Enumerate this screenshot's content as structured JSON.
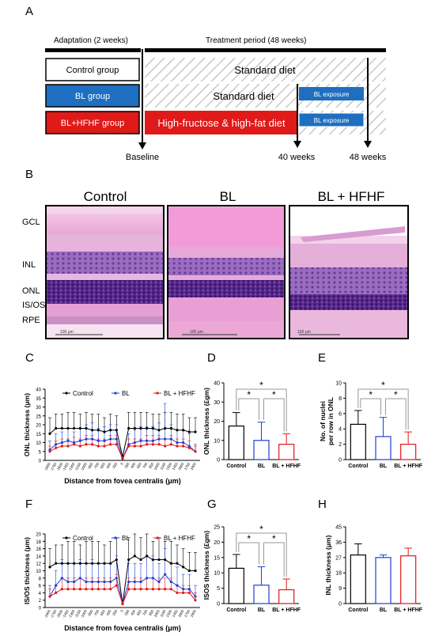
{
  "panel_labels": {
    "a": "A",
    "b": "B",
    "c": "C",
    "d": "D",
    "e": "E",
    "f": "F",
    "g": "G",
    "h": "H"
  },
  "timeline": {
    "adaptation_label": "Adaptation (2 weeks)",
    "treatment_label": "Treatment period (48 weeks)",
    "rows": [
      {
        "group": "Control group",
        "color": "#ffffff",
        "text_color": "#000000",
        "diet": "Standard diet"
      },
      {
        "group": "BL group",
        "color": "#1f6fc0",
        "text_color": "#ffffff",
        "diet": "Standard diet",
        "exposure": "BL exposure"
      },
      {
        "group": "BL+HFHF group",
        "color": "#e01919",
        "text_color": "#ffffff",
        "diet": "High-fructose & high-fat diet",
        "exposure": "BL exposure"
      }
    ],
    "markers": [
      "Baseline",
      "40 weeks",
      "48 weeks"
    ],
    "exposure_color": "#1f6fc0",
    "hfhf_color": "#e01919"
  },
  "histology": {
    "titles": [
      "Control",
      "BL",
      "BL + HFHF"
    ],
    "layer_labels": [
      "GCL",
      "INL",
      "ONL",
      "IS/OS",
      "RPE"
    ],
    "scale_bar": "100 μm"
  },
  "legend": {
    "control": "Control",
    "bl": "BL",
    "blhfhf": "BL + HFHF"
  },
  "colors": {
    "control": "#000000",
    "bl": "#1f3fd8",
    "blhfhf": "#e01919"
  },
  "chart_data": [
    {
      "id": "C",
      "type": "line",
      "ylabel": "ONL thickness (μm)",
      "xlabel": "Distance from fovea centralis (μm)",
      "ylim": [
        0,
        40
      ],
      "yticks": [
        0,
        5,
        10,
        15,
        20,
        25,
        30,
        35,
        40
      ],
      "x": [
        "-1900",
        "-1750",
        "-1600",
        "-1450",
        "-1300",
        "-1150",
        "-1000",
        "-850",
        "-700",
        "-550",
        "-400",
        "-250",
        "0",
        "250",
        "400",
        "550",
        "700",
        "850",
        "1000",
        "1150",
        "1300",
        "1450",
        "1600",
        "1750",
        "1900"
      ],
      "series": [
        {
          "name": "Control",
          "values": [
            15,
            18,
            18,
            18,
            18,
            18,
            18,
            17,
            17,
            16,
            17,
            17,
            2,
            18,
            18,
            18,
            18,
            18,
            17,
            18,
            18,
            17,
            17,
            16,
            16
          ],
          "err": [
            9,
            8,
            8,
            9,
            9,
            8,
            9,
            9,
            9,
            8,
            9,
            8,
            1,
            9,
            9,
            9,
            9,
            8,
            9,
            9,
            9,
            9,
            9,
            8,
            8
          ]
        },
        {
          "name": "BL",
          "values": [
            6,
            9,
            10,
            11,
            10,
            11,
            12,
            12,
            11,
            11,
            12,
            12,
            1,
            9,
            10,
            11,
            11,
            11,
            12,
            12,
            12,
            10,
            10,
            8,
            5
          ],
          "err": [
            5,
            6,
            6,
            7,
            6,
            7,
            8,
            9,
            7,
            8,
            8,
            8,
            1,
            6,
            7,
            8,
            8,
            8,
            9,
            20,
            8,
            7,
            7,
            7,
            4
          ]
        },
        {
          "name": "BL + HFHF",
          "values": [
            5,
            7,
            8,
            8,
            9,
            8,
            9,
            9,
            8,
            8,
            9,
            9,
            1,
            8,
            8,
            8,
            9,
            9,
            9,
            8,
            9,
            8,
            8,
            7,
            5
          ],
          "err": [
            3,
            4,
            4,
            4,
            4,
            4,
            5,
            5,
            4,
            4,
            5,
            5,
            1,
            4,
            4,
            4,
            5,
            5,
            5,
            4,
            5,
            4,
            4,
            4,
            3
          ]
        }
      ]
    },
    {
      "id": "D",
      "type": "bar",
      "ylabel": "ONL thickness (£gm)",
      "ylim": [
        0,
        40
      ],
      "yticks": [
        0,
        10,
        20,
        30,
        40
      ],
      "categories": [
        "Control",
        "BL",
        "BL + HFHF"
      ],
      "values": [
        17.5,
        10,
        8
      ],
      "err": [
        7,
        9.5,
        5.5
      ],
      "sig": "*"
    },
    {
      "id": "E",
      "type": "bar",
      "ylabel_line1": "No. of nuclei",
      "ylabel_line2": "per row in ONL",
      "ylim": [
        0,
        10
      ],
      "yticks": [
        0,
        2,
        4,
        6,
        8,
        10
      ],
      "categories": [
        "Control",
        "BL",
        "BL + HFHF"
      ],
      "values": [
        4.6,
        3.0,
        2.0
      ],
      "err": [
        1.8,
        2.5,
        1.6
      ],
      "sig": "*"
    },
    {
      "id": "F",
      "type": "line",
      "ylabel": "IS/OS thickness (μm)",
      "xlabel": "Distance from fovea centralis (μm)",
      "ylim": [
        0,
        20
      ],
      "yticks": [
        0,
        2,
        4,
        6,
        8,
        10,
        12,
        14,
        16,
        18,
        20
      ],
      "x": [
        "-1900",
        "-1750",
        "-1600",
        "-1450",
        "-1300",
        "-1150",
        "-1000",
        "-850",
        "-700",
        "-550",
        "-400",
        "-250",
        "0",
        "250",
        "400",
        "550",
        "700",
        "850",
        "1000",
        "1150",
        "1300",
        "1450",
        "1600",
        "1750",
        "1900"
      ],
      "series": [
        {
          "name": "Control",
          "values": [
            11,
            12,
            12,
            12,
            12,
            12,
            12,
            12,
            12,
            12,
            12,
            13,
            1,
            13,
            14,
            13,
            14,
            13,
            13,
            13,
            12,
            12,
            11,
            10,
            10
          ],
          "err": [
            5,
            5,
            5,
            6,
            6,
            5,
            6,
            6,
            6,
            5,
            6,
            6,
            1,
            6,
            6,
            6,
            6,
            5,
            6,
            5,
            6,
            5,
            5,
            5,
            5
          ]
        },
        {
          "name": "BL",
          "values": [
            3,
            6,
            8,
            7,
            7,
            8,
            7,
            7,
            7,
            7,
            7,
            8,
            1,
            7,
            7,
            7,
            8,
            8,
            7,
            9,
            7,
            6,
            5,
            5,
            3
          ],
          "err": [
            3,
            4,
            5,
            5,
            5,
            5,
            5,
            6,
            5,
            5,
            5,
            6,
            1,
            5,
            5,
            5,
            6,
            6,
            5,
            7,
            5,
            5,
            4,
            4,
            3
          ]
        },
        {
          "name": "BL + HFHF",
          "values": [
            3,
            4,
            5,
            5,
            5,
            5,
            5,
            5,
            5,
            5,
            5,
            6,
            1,
            5,
            5,
            5,
            5,
            5,
            5,
            5,
            5,
            4,
            4,
            4,
            2
          ],
          "err": [
            2,
            2,
            3,
            3,
            3,
            3,
            3,
            3,
            3,
            3,
            3,
            3,
            1,
            3,
            3,
            3,
            3,
            3,
            3,
            3,
            3,
            2,
            2,
            2,
            2
          ]
        }
      ]
    },
    {
      "id": "G",
      "type": "bar",
      "ylabel": "ISOS thickness (£gm)",
      "ylim": [
        0,
        25
      ],
      "yticks": [
        0,
        5,
        10,
        15,
        20,
        25
      ],
      "categories": [
        "Control",
        "BL",
        "BL + HFHF"
      ],
      "values": [
        11.5,
        6,
        4.5
      ],
      "err": [
        4.5,
        6,
        3.5
      ],
      "sig": "*"
    },
    {
      "id": "H",
      "type": "bar",
      "ylabel": "INL thickness (μm)",
      "ylim": [
        0,
        45
      ],
      "yticks": [
        0,
        9,
        18,
        27,
        36,
        45
      ],
      "categories": [
        "Control",
        "BL",
        "BL + HFHF"
      ],
      "values": [
        28.5,
        27,
        28
      ],
      "err": [
        6.5,
        1.5,
        4.5
      ]
    }
  ]
}
